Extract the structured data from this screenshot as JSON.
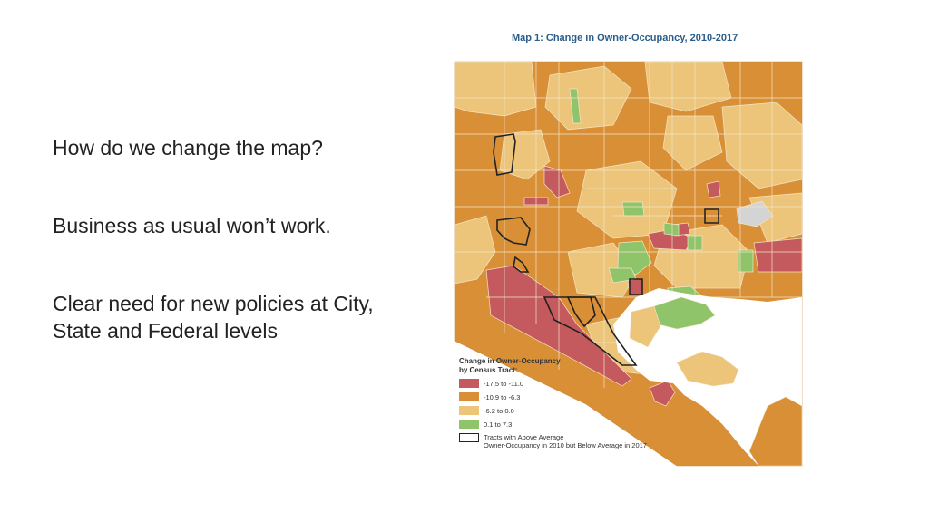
{
  "slide": {
    "bullets": [
      "How do we change the map?",
      "Business as usual won’t work.",
      "Clear need for new policies at City, State and Federal levels"
    ]
  },
  "map": {
    "title": "Map 1: Change in Owner-Occupancy, 2010-2017",
    "legend": {
      "title_line1": "Change in Owner-Occupancy",
      "title_line2": "by Census Tract:",
      "items": [
        {
          "label": "-17.5 to -11.0",
          "color": "#c45a5e"
        },
        {
          "label": "-10.9 to -6.3",
          "color": "#d98f36"
        },
        {
          "label": "-6.2 to 0.0",
          "color": "#ecc57a"
        },
        {
          "label": "0.1 to 7.3",
          "color": "#8fc46a"
        }
      ],
      "outline_line1": "Tracts with Above Average",
      "outline_line2": "Owner-Occupancy in 2010 but Below Average in 2017"
    }
  }
}
